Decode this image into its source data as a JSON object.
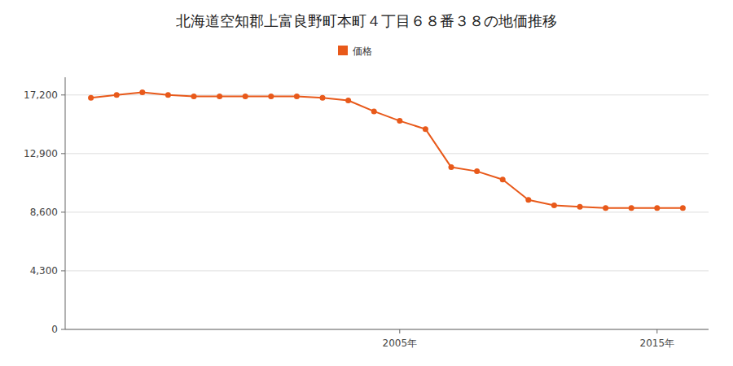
{
  "chart_data": {
    "type": "line",
    "title": "北海道空知郡上富良野町本町４丁目６８番３８の地価推移",
    "x": [
      1993,
      1994,
      1995,
      1996,
      1997,
      1998,
      1999,
      2000,
      2001,
      2002,
      2003,
      2004,
      2005,
      2006,
      2007,
      2008,
      2009,
      2010,
      2011,
      2012,
      2013,
      2014,
      2015,
      2016
    ],
    "series": [
      {
        "name": "価格",
        "color": "#e8591a",
        "marker": "circle",
        "values": [
          17000,
          17200,
          17400,
          17200,
          17100,
          17100,
          17100,
          17100,
          17100,
          17000,
          16800,
          16000,
          15300,
          14700,
          11900,
          11600,
          11000,
          9500,
          9100,
          9000,
          8900,
          8900,
          8900,
          8900
        ]
      }
    ],
    "xlim": [
      1992,
      2017
    ],
    "xticks": [
      {
        "value": 2005,
        "label": "2005年"
      },
      {
        "value": 2015,
        "label": "2015年"
      }
    ],
    "ylim": [
      0,
      18500
    ],
    "yticks": [
      0,
      {
        "value": 4300,
        "label": "4,300"
      },
      {
        "value": 8600,
        "label": "8,600"
      },
      {
        "value": 12900,
        "label": "12,900"
      },
      {
        "value": 17200,
        "label": "17,200"
      }
    ],
    "grid": true,
    "legend": "top"
  }
}
